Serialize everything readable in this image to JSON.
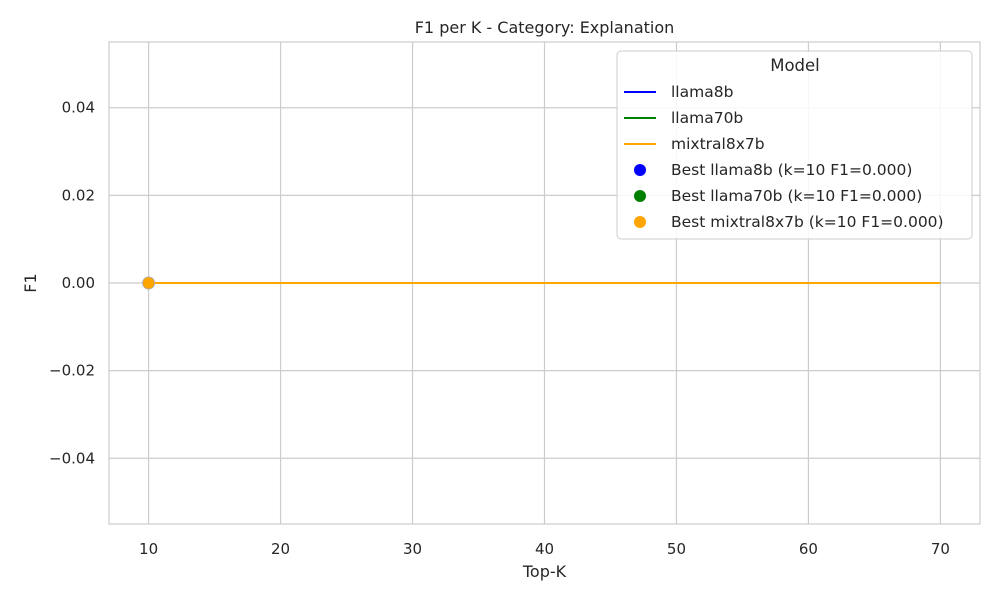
{
  "chart_data": {
    "type": "line",
    "title": "F1 per K - Category: Explanation",
    "xlabel": "Top-K",
    "ylabel": "F1",
    "xlim": [
      7,
      73
    ],
    "ylim": [
      -0.055,
      0.055
    ],
    "x_ticks": [
      10,
      20,
      30,
      40,
      50,
      60,
      70
    ],
    "y_ticks": [
      0.04,
      0.02,
      0.0,
      -0.02,
      -0.04
    ],
    "x_tick_labels": [
      "10",
      "20",
      "30",
      "40",
      "50",
      "60",
      "70"
    ],
    "y_tick_labels": [
      "0.04",
      "0.02",
      "0.00",
      "−0.02",
      "−0.04"
    ],
    "grid": true,
    "legend_placement": "top-right",
    "legend_title": "Model",
    "series": [
      {
        "name": "llama8b",
        "color": "#0000ff",
        "x": [
          10,
          70
        ],
        "y": [
          0.0,
          0.0
        ]
      },
      {
        "name": "llama70b",
        "color": "#008000",
        "x": [
          10,
          70
        ],
        "y": [
          0.0,
          0.0
        ]
      },
      {
        "name": "mixtral8x7b",
        "color": "#ffa500",
        "x": [
          10,
          70
        ],
        "y": [
          0.0,
          0.0
        ]
      }
    ],
    "best_points": [
      {
        "name": "Best llama8b (k=10 F1=0.000)",
        "color": "#0000ff",
        "x": 10,
        "y": 0.0
      },
      {
        "name": "Best llama70b (k=10 F1=0.000)",
        "color": "#008000",
        "x": 10,
        "y": 0.0
      },
      {
        "name": "Best mixtral8x7b (k=10 F1=0.000)",
        "color": "#ffa500",
        "x": 10,
        "y": 0.0
      }
    ]
  }
}
